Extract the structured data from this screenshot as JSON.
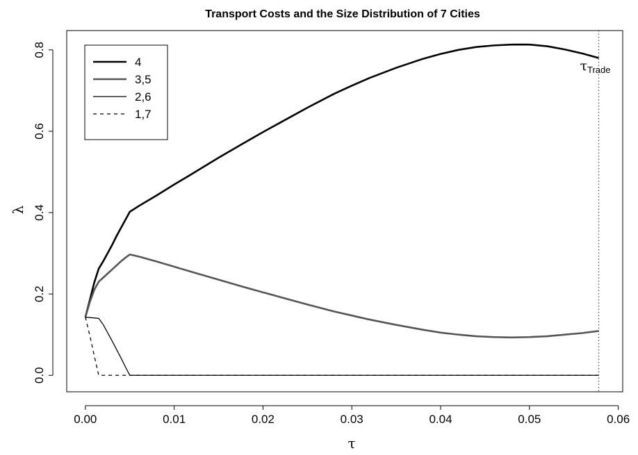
{
  "chart_data": {
    "type": "line",
    "title": "Transport Costs and the Size Distribution of 7 Cities",
    "xlabel": "τ",
    "ylabel": "λ",
    "xlim": [
      -0.0021,
      0.0605
    ],
    "ylim": [
      -0.0405,
      0.8475
    ],
    "xticks": [
      0.0,
      0.01,
      0.02,
      0.03,
      0.04,
      0.05,
      0.06
    ],
    "xtick_labels": [
      "0.00",
      "0.01",
      "0.02",
      "0.03",
      "0.04",
      "0.05",
      "0.06"
    ],
    "yticks": [
      0.0,
      0.2,
      0.4,
      0.6,
      0.8
    ],
    "ytick_labels": [
      "0.0",
      "0.2",
      "0.4",
      "0.6",
      "0.8"
    ],
    "grid": false,
    "legend_position": "top-left",
    "series": [
      {
        "name": "4",
        "color": "#000000",
        "style": "thick",
        "x": [
          0.0,
          0.0005,
          0.001,
          0.0015,
          0.002,
          0.0025,
          0.003,
          0.0035,
          0.004,
          0.0045,
          0.005,
          0.006,
          0.008,
          0.01,
          0.012,
          0.015,
          0.018,
          0.02,
          0.022,
          0.025,
          0.028,
          0.03,
          0.032,
          0.035,
          0.038,
          0.04,
          0.042,
          0.044,
          0.046,
          0.048,
          0.049,
          0.05,
          0.052,
          0.054,
          0.056,
          0.0578
        ],
        "y": [
          0.143,
          0.185,
          0.228,
          0.262,
          0.28,
          0.3,
          0.32,
          0.342,
          0.362,
          0.382,
          0.402,
          0.416,
          0.442,
          0.469,
          0.495,
          0.535,
          0.573,
          0.598,
          0.622,
          0.658,
          0.692,
          0.712,
          0.731,
          0.756,
          0.778,
          0.79,
          0.8,
          0.807,
          0.811,
          0.813,
          0.8133,
          0.813,
          0.809,
          0.801,
          0.791,
          0.78
        ]
      },
      {
        "name": "3,5",
        "color": "#555555",
        "style": "thick",
        "x": [
          0.0,
          0.0005,
          0.001,
          0.0015,
          0.002,
          0.0025,
          0.003,
          0.0035,
          0.004,
          0.0045,
          0.005,
          0.006,
          0.008,
          0.01,
          0.012,
          0.015,
          0.018,
          0.02,
          0.022,
          0.025,
          0.028,
          0.03,
          0.032,
          0.035,
          0.038,
          0.04,
          0.042,
          0.044,
          0.046,
          0.048,
          0.05,
          0.052,
          0.054,
          0.056,
          0.0578
        ],
        "y": [
          0.143,
          0.18,
          0.21,
          0.23,
          0.24,
          0.25,
          0.26,
          0.27,
          0.28,
          0.289,
          0.297,
          0.292,
          0.28,
          0.267,
          0.254,
          0.235,
          0.216,
          0.204,
          0.192,
          0.174,
          0.157,
          0.147,
          0.137,
          0.124,
          0.112,
          0.105,
          0.1,
          0.096,
          0.094,
          0.093,
          0.094,
          0.096,
          0.1,
          0.104,
          0.109
        ]
      },
      {
        "name": "2,6",
        "color": "#000000",
        "style": "thin",
        "x": [
          0.0,
          0.0015,
          0.002,
          0.0025,
          0.003,
          0.0035,
          0.004,
          0.0045,
          0.005,
          0.006,
          0.0578
        ],
        "y": [
          0.143,
          0.14,
          0.125,
          0.105,
          0.085,
          0.064,
          0.043,
          0.021,
          0.0,
          0.0,
          0.0
        ]
      },
      {
        "name": "1,7",
        "color": "#000000",
        "style": "dashed",
        "x": [
          0.0,
          0.0005,
          0.001,
          0.0015,
          0.002,
          0.005,
          0.0578
        ],
        "y": [
          0.143,
          0.098,
          0.048,
          0.0,
          0.0,
          0.0,
          0.0
        ]
      }
    ],
    "annotations": [
      {
        "type": "vline",
        "x": 0.0578,
        "style": "dotted",
        "label": "τ",
        "label_sub": "Trade"
      }
    ]
  }
}
